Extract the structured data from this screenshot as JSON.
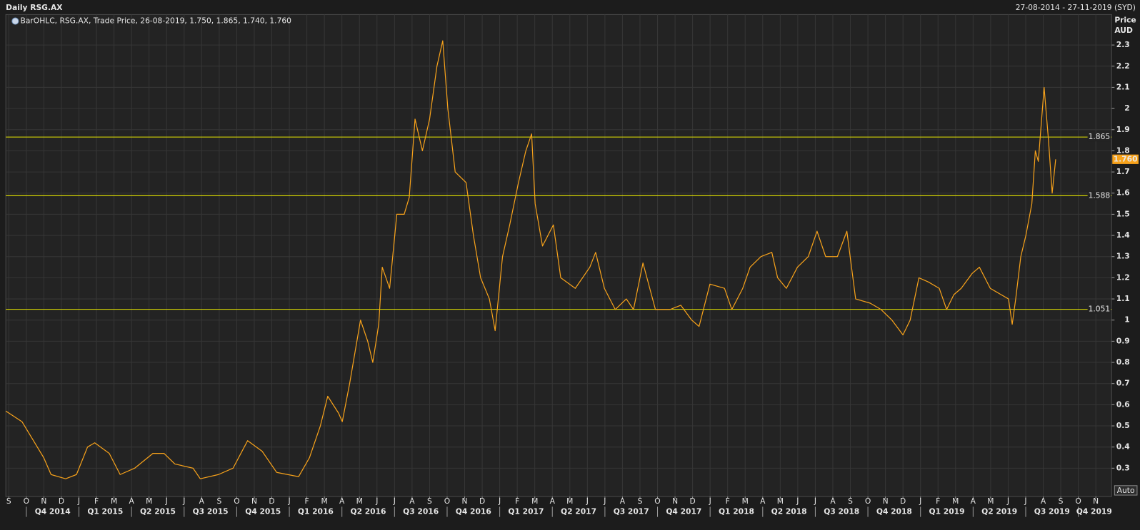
{
  "header": {
    "title": "Daily RSG.AX",
    "date_range": "27-08-2014 - 27-11-2019 (SYD)"
  },
  "chart_data": {
    "type": "line",
    "legend": "BarOHLC, RSG.AX, Trade Price, 26-08-2019, 1.750, 1.865, 1.740, 1.760",
    "y_axis_label": "Price",
    "y_axis_unit": "AUD",
    "scale_button": "Auto",
    "color": "#f7a21b",
    "reference_color": "#e8e800",
    "grid": true,
    "x": [
      -0.17,
      0.75,
      1.99,
      2.41,
      3.24,
      3.86,
      4.49,
      4.9,
      5.73,
      6.35,
      7.18,
      8.22,
      8.85,
      9.47,
      10.51,
      10.92,
      11.96,
      12.79,
      13.62,
      14.45,
      15.28,
      16.53,
      17.15,
      17.77,
      18.19,
      18.81,
      19.02,
      19.44,
      20.06,
      20.47,
      20.76,
      21.1,
      21.3,
      21.72,
      22.13,
      22.55,
      22.84,
      23.17,
      23.59,
      24.0,
      24.42,
      24.75,
      25.04,
      25.46,
      26.08,
      26.5,
      26.91,
      27.41,
      27.74,
      28.16,
      28.57,
      29.07,
      29.49,
      29.82,
      30.02,
      30.44,
      31.06,
      31.48,
      32.31,
      33.14,
      33.47,
      33.97,
      34.59,
      35.22,
      35.63,
      36.17,
      36.88,
      37.71,
      38.33,
      38.95,
      39.37,
      39.99,
      40.82,
      41.24,
      41.86,
      42.28,
      42.9,
      43.52,
      43.85,
      44.35,
      44.98,
      45.6,
      46.1,
      46.59,
      47.26,
      47.8,
      48.3,
      49.13,
      49.75,
      50.37,
      51.0,
      51.41,
      51.91,
      52.45,
      53.07,
      53.49,
      53.9,
      54.32,
      54.94,
      55.36,
      55.98,
      56.6,
      57.02,
      57.23,
      57.43,
      57.72,
      58.01,
      58.35,
      58.55,
      58.72,
      59.05,
      59.3,
      59.51,
      59.71
    ],
    "values": [
      0.57,
      0.52,
      0.35,
      0.27,
      0.25,
      0.27,
      0.4,
      0.42,
      0.37,
      0.27,
      0.3,
      0.37,
      0.37,
      0.32,
      0.3,
      0.25,
      0.27,
      0.3,
      0.43,
      0.38,
      0.28,
      0.26,
      0.35,
      0.5,
      0.64,
      0.56,
      0.52,
      0.7,
      1.0,
      0.9,
      0.8,
      0.98,
      1.25,
      1.15,
      1.5,
      1.5,
      1.58,
      1.95,
      1.8,
      1.95,
      2.2,
      2.32,
      2.0,
      1.7,
      1.65,
      1.4,
      1.2,
      1.1,
      0.95,
      1.3,
      1.45,
      1.65,
      1.8,
      1.88,
      1.55,
      1.35,
      1.45,
      1.2,
      1.15,
      1.25,
      1.32,
      1.15,
      1.05,
      1.1,
      1.05,
      1.27,
      1.05,
      1.05,
      1.07,
      1.0,
      0.97,
      1.17,
      1.15,
      1.05,
      1.15,
      1.25,
      1.3,
      1.32,
      1.2,
      1.15,
      1.25,
      1.3,
      1.42,
      1.3,
      1.3,
      1.42,
      1.1,
      1.08,
      1.05,
      1.0,
      0.93,
      1.0,
      1.2,
      1.18,
      1.15,
      1.05,
      1.12,
      1.15,
      1.22,
      1.25,
      1.15,
      1.12,
      1.1,
      0.98,
      1.1,
      1.3,
      1.4,
      1.55,
      1.8,
      1.75,
      2.1,
      1.85,
      1.6,
      1.76
    ],
    "xlim": [
      -0.17,
      62.9
    ],
    "ylim": [
      0.166,
      2.444
    ],
    "yticks": [
      0.3,
      0.4,
      0.5,
      0.6,
      0.7,
      0.8,
      0.9,
      1,
      1.1,
      1.2,
      1.3,
      1.4,
      1.5,
      1.6,
      1.7,
      1.8,
      1.9,
      2,
      2.1,
      2.2,
      2.3
    ],
    "xticks": [
      {
        "value": 0,
        "label": "S"
      },
      {
        "value": 1,
        "label": "O"
      },
      {
        "value": 2,
        "label": "N"
      },
      {
        "value": 3,
        "label": "D"
      },
      {
        "value": 4,
        "label": "J"
      },
      {
        "value": 5,
        "label": "F"
      },
      {
        "value": 6,
        "label": "M"
      },
      {
        "value": 7,
        "label": "A"
      },
      {
        "value": 8,
        "label": "M"
      },
      {
        "value": 9,
        "label": "J"
      },
      {
        "value": 10,
        "label": "J"
      },
      {
        "value": 11,
        "label": "A"
      },
      {
        "value": 12,
        "label": "S"
      },
      {
        "value": 13,
        "label": "O"
      },
      {
        "value": 14,
        "label": "N"
      },
      {
        "value": 15,
        "label": "D"
      },
      {
        "value": 16,
        "label": "J"
      },
      {
        "value": 17,
        "label": "F"
      },
      {
        "value": 18,
        "label": "M"
      },
      {
        "value": 19,
        "label": "A"
      },
      {
        "value": 20,
        "label": "M"
      },
      {
        "value": 21,
        "label": "J"
      },
      {
        "value": 22,
        "label": "J"
      },
      {
        "value": 23,
        "label": "A"
      },
      {
        "value": 24,
        "label": "S"
      },
      {
        "value": 25,
        "label": "O"
      },
      {
        "value": 26,
        "label": "N"
      },
      {
        "value": 27,
        "label": "D"
      },
      {
        "value": 28,
        "label": "J"
      },
      {
        "value": 29,
        "label": "F"
      },
      {
        "value": 30,
        "label": "M"
      },
      {
        "value": 31,
        "label": "A"
      },
      {
        "value": 32,
        "label": "M"
      },
      {
        "value": 33,
        "label": "J"
      },
      {
        "value": 34,
        "label": "J"
      },
      {
        "value": 35,
        "label": "A"
      },
      {
        "value": 36,
        "label": "S"
      },
      {
        "value": 37,
        "label": "O"
      },
      {
        "value": 38,
        "label": "N"
      },
      {
        "value": 39,
        "label": "D"
      },
      {
        "value": 40,
        "label": "J"
      },
      {
        "value": 41,
        "label": "F"
      },
      {
        "value": 42,
        "label": "M"
      },
      {
        "value": 43,
        "label": "A"
      },
      {
        "value": 44,
        "label": "M"
      },
      {
        "value": 45,
        "label": "J"
      },
      {
        "value": 46,
        "label": "J"
      },
      {
        "value": 47,
        "label": "A"
      },
      {
        "value": 48,
        "label": "S"
      },
      {
        "value": 49,
        "label": "O"
      },
      {
        "value": 50,
        "label": "N"
      },
      {
        "value": 51,
        "label": "D"
      },
      {
        "value": 52,
        "label": "J"
      },
      {
        "value": 53,
        "label": "F"
      },
      {
        "value": 54,
        "label": "M"
      },
      {
        "value": 55,
        "label": "A"
      },
      {
        "value": 56,
        "label": "M"
      },
      {
        "value": 57,
        "label": "J"
      },
      {
        "value": 58,
        "label": "J"
      },
      {
        "value": 59,
        "label": "A"
      },
      {
        "value": 60,
        "label": "S"
      },
      {
        "value": 61,
        "label": "O"
      },
      {
        "value": 62,
        "label": "N"
      }
    ],
    "quarters": [
      {
        "value": 1,
        "label": "Q4 2014"
      },
      {
        "value": 4,
        "label": "Q1 2015"
      },
      {
        "value": 7,
        "label": "Q2 2015"
      },
      {
        "value": 10,
        "label": "Q3 2015"
      },
      {
        "value": 13,
        "label": "Q4 2015"
      },
      {
        "value": 16,
        "label": "Q1 2016"
      },
      {
        "value": 19,
        "label": "Q2 2016"
      },
      {
        "value": 22,
        "label": "Q3 2016"
      },
      {
        "value": 25,
        "label": "Q4 2016"
      },
      {
        "value": 28,
        "label": "Q1 2017"
      },
      {
        "value": 31,
        "label": "Q2 2017"
      },
      {
        "value": 34,
        "label": "Q3 2017"
      },
      {
        "value": 37,
        "label": "Q4 2017"
      },
      {
        "value": 40,
        "label": "Q1 2018"
      },
      {
        "value": 43,
        "label": "Q2 2018"
      },
      {
        "value": 46,
        "label": "Q3 2018"
      },
      {
        "value": 49,
        "label": "Q4 2018"
      },
      {
        "value": 52,
        "label": "Q1 2019"
      },
      {
        "value": 55,
        "label": "Q2 2019"
      },
      {
        "value": 58,
        "label": "Q3 2019"
      },
      {
        "value": 61,
        "label": "Q4 2019"
      }
    ],
    "reference_lines": [
      1.865,
      1.588,
      1.051
    ],
    "last_price": {
      "value": 1.76,
      "label": "1.760"
    }
  }
}
